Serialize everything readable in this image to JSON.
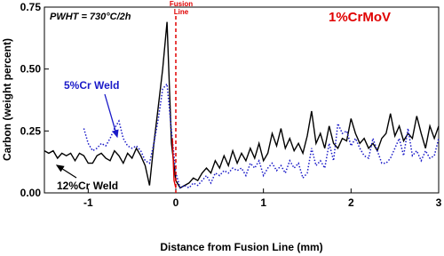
{
  "chart_data": {
    "type": "line",
    "x_label": "Distance from Fusion Line (mm)",
    "y_label": "Carbon (weight percent)",
    "annotations": {
      "condition": "PWHT = 730°C/2h",
      "material": "1%CrMoV",
      "fusion_label": [
        "Fusion",
        "Line"
      ]
    },
    "fusion_line_x": 0,
    "fusion_line_color": "#e00000",
    "xlim": [
      -1.5,
      3
    ],
    "ylim": [
      0,
      0.75
    ],
    "xticks": [
      -1,
      0,
      1,
      2,
      3
    ],
    "yticks": [
      {
        "value": 0,
        "label": "0.00"
      },
      0.25,
      {
        "value": 0.5,
        "label": "0.50"
      },
      0.75
    ],
    "series": [
      {
        "name": "12%Cr Weld",
        "color": "#000000",
        "style": "solid",
        "x": [
          -1.5,
          -1.45,
          -1.4,
          -1.35,
          -1.3,
          -1.25,
          -1.2,
          -1.15,
          -1.1,
          -1.05,
          -1.0,
          -0.95,
          -0.9,
          -0.85,
          -0.8,
          -0.75,
          -0.7,
          -0.65,
          -0.6,
          -0.55,
          -0.5,
          -0.45,
          -0.4,
          -0.35,
          -0.3,
          -0.25,
          -0.2,
          -0.15,
          -0.1,
          -0.05,
          0.0,
          0.05,
          0.1,
          0.15,
          0.2,
          0.25,
          0.3,
          0.35,
          0.4,
          0.45,
          0.5,
          0.55,
          0.6,
          0.65,
          0.7,
          0.75,
          0.8,
          0.85,
          0.9,
          0.95,
          1.0,
          1.05,
          1.1,
          1.15,
          1.2,
          1.25,
          1.3,
          1.35,
          1.4,
          1.45,
          1.5,
          1.55,
          1.6,
          1.65,
          1.7,
          1.75,
          1.8,
          1.85,
          1.9,
          1.95,
          2.0,
          2.05,
          2.1,
          2.15,
          2.2,
          2.25,
          2.3,
          2.35,
          2.4,
          2.45,
          2.5,
          2.55,
          2.6,
          2.65,
          2.7,
          2.75,
          2.8,
          2.85,
          2.9,
          2.95,
          3.0
        ],
        "values": [
          0.17,
          0.16,
          0.17,
          0.14,
          0.16,
          0.15,
          0.16,
          0.13,
          0.16,
          0.15,
          0.12,
          0.12,
          0.15,
          0.16,
          0.14,
          0.13,
          0.17,
          0.15,
          0.12,
          0.16,
          0.14,
          0.18,
          0.15,
          0.11,
          0.03,
          0.2,
          0.35,
          0.5,
          0.69,
          0.2,
          0.05,
          0.02,
          0.03,
          0.04,
          0.06,
          0.05,
          0.08,
          0.1,
          0.08,
          0.13,
          0.1,
          0.15,
          0.11,
          0.17,
          0.12,
          0.16,
          0.13,
          0.18,
          0.14,
          0.2,
          0.13,
          0.16,
          0.24,
          0.19,
          0.26,
          0.18,
          0.22,
          0.17,
          0.2,
          0.16,
          0.23,
          0.33,
          0.2,
          0.24,
          0.18,
          0.27,
          0.2,
          0.18,
          0.22,
          0.21,
          0.3,
          0.24,
          0.2,
          0.22,
          0.18,
          0.2,
          0.17,
          0.22,
          0.24,
          0.32,
          0.23,
          0.27,
          0.21,
          0.24,
          0.22,
          0.31,
          0.24,
          0.18,
          0.27,
          0.22,
          0.27
        ]
      },
      {
        "name": "5%Cr Weld",
        "color": "#1a1ac8",
        "style": "dotted",
        "x": [
          -1.05,
          -1.0,
          -0.95,
          -0.9,
          -0.85,
          -0.8,
          -0.75,
          -0.7,
          -0.65,
          -0.6,
          -0.55,
          -0.5,
          -0.45,
          -0.4,
          -0.35,
          -0.3,
          -0.25,
          -0.2,
          -0.15,
          -0.1,
          -0.05,
          0.0,
          0.05,
          0.1,
          0.15,
          0.2,
          0.25,
          0.3,
          0.35,
          0.4,
          0.45,
          0.5,
          0.55,
          0.6,
          0.65,
          0.7,
          0.75,
          0.8,
          0.85,
          0.9,
          0.95,
          1.0,
          1.05,
          1.1,
          1.15,
          1.2,
          1.25,
          1.3,
          1.35,
          1.4,
          1.45,
          1.5,
          1.55,
          1.6,
          1.65,
          1.7,
          1.75,
          1.8,
          1.85,
          1.9,
          1.95,
          2.0,
          2.05,
          2.1,
          2.15,
          2.2,
          2.25,
          2.3,
          2.35,
          2.4,
          2.45,
          2.5,
          2.55,
          2.6,
          2.65,
          2.7,
          2.75,
          2.8,
          2.85,
          2.9,
          2.95,
          3.0
        ],
        "values": [
          0.26,
          0.2,
          0.17,
          0.18,
          0.2,
          0.19,
          0.22,
          0.26,
          0.29,
          0.22,
          0.19,
          0.18,
          0.19,
          0.17,
          0.13,
          0.12,
          0.2,
          0.3,
          0.42,
          0.44,
          0.25,
          0.08,
          0.02,
          0.03,
          0.02,
          0.04,
          0.03,
          0.05,
          0.07,
          0.04,
          0.08,
          0.07,
          0.09,
          0.08,
          0.1,
          0.09,
          0.1,
          0.07,
          0.12,
          0.1,
          0.13,
          0.07,
          0.1,
          0.12,
          0.09,
          0.11,
          0.08,
          0.13,
          0.1,
          0.12,
          0.06,
          0.08,
          0.18,
          0.11,
          0.13,
          0.1,
          0.2,
          0.13,
          0.28,
          0.24,
          0.25,
          0.19,
          0.22,
          0.18,
          0.15,
          0.14,
          0.22,
          0.17,
          0.12,
          0.12,
          0.14,
          0.18,
          0.22,
          0.15,
          0.26,
          0.15,
          0.17,
          0.13,
          0.17,
          0.14,
          0.15,
          0.22
        ]
      },
      {
        "color": "#e00000",
        "style": "solid",
        "x": [
          -0.04,
          -0.02,
          0.0
        ],
        "values": [
          0.22,
          0.05,
          0.02
        ]
      }
    ]
  }
}
